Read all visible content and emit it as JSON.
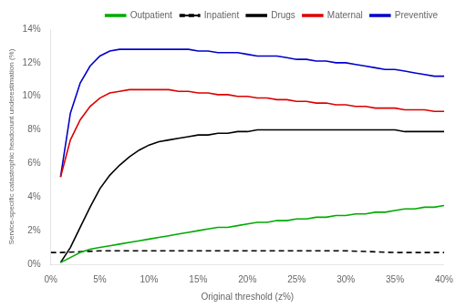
{
  "chart_data": {
    "type": "line",
    "title": "",
    "x_label": "Original threshold (z%)",
    "y_label": "Service-specific catastrophic headcount underestimation (%)",
    "xlim": [
      0,
      0.4
    ],
    "ylim": [
      0,
      0.14
    ],
    "xticks": [
      {
        "value": 0.0,
        "label": "0%"
      },
      {
        "value": 0.05,
        "label": "5%"
      },
      {
        "value": 0.1,
        "label": "10%"
      },
      {
        "value": 0.15,
        "label": "15%"
      },
      {
        "value": 0.2,
        "label": "20%"
      },
      {
        "value": 0.25,
        "label": "25%"
      },
      {
        "value": 0.3,
        "label": "30%"
      },
      {
        "value": 0.35,
        "label": "35%"
      },
      {
        "value": 0.4,
        "label": "40%"
      }
    ],
    "yticks": [
      {
        "value": 0.0,
        "label": "0%"
      },
      {
        "value": 0.02,
        "label": "2%"
      },
      {
        "value": 0.04,
        "label": "4%"
      },
      {
        "value": 0.06,
        "label": "6%"
      },
      {
        "value": 0.08,
        "label": "8%"
      },
      {
        "value": 0.1,
        "label": "10%"
      },
      {
        "value": 0.12,
        "label": "12%"
      },
      {
        "value": 0.14,
        "label": "14%"
      }
    ],
    "grid": false,
    "legend": "upper right",
    "series": [
      {
        "name": "Outpatient",
        "color": "#00aa00",
        "line_style": "solid",
        "x": [
          0.01,
          0.02,
          0.03,
          0.04,
          0.05,
          0.06,
          0.07,
          0.08,
          0.09,
          0.1,
          0.11,
          0.12,
          0.13,
          0.14,
          0.15,
          0.16,
          0.17,
          0.18,
          0.19,
          0.2,
          0.21,
          0.22,
          0.23,
          0.24,
          0.25,
          0.26,
          0.27,
          0.28,
          0.29,
          0.3,
          0.31,
          0.32,
          0.33,
          0.34,
          0.35,
          0.36,
          0.37,
          0.38,
          0.39,
          0.4
        ],
        "values": [
          0.001,
          0.004,
          0.007,
          0.009,
          0.01,
          0.011,
          0.012,
          0.013,
          0.014,
          0.015,
          0.016,
          0.017,
          0.018,
          0.019,
          0.02,
          0.021,
          0.022,
          0.022,
          0.023,
          0.024,
          0.025,
          0.025,
          0.026,
          0.026,
          0.027,
          0.027,
          0.028,
          0.028,
          0.029,
          0.029,
          0.03,
          0.03,
          0.031,
          0.031,
          0.032,
          0.033,
          0.033,
          0.034,
          0.034,
          0.035
        ]
      },
      {
        "name": "Inpatient",
        "color": "#000000",
        "line_style": "dashed",
        "x": [
          0.0,
          0.01,
          0.05,
          0.1,
          0.15,
          0.2,
          0.25,
          0.3,
          0.35,
          0.4
        ],
        "values": [
          0.007,
          0.007,
          0.008,
          0.008,
          0.008,
          0.008,
          0.008,
          0.008,
          0.007,
          0.007
        ]
      },
      {
        "name": "Drugs",
        "color": "#000000",
        "line_style": "solid",
        "x": [
          0.01,
          0.02,
          0.03,
          0.04,
          0.05,
          0.06,
          0.07,
          0.08,
          0.09,
          0.1,
          0.11,
          0.12,
          0.13,
          0.14,
          0.15,
          0.16,
          0.17,
          0.18,
          0.19,
          0.2,
          0.21,
          0.22,
          0.23,
          0.24,
          0.25,
          0.26,
          0.27,
          0.28,
          0.29,
          0.3,
          0.31,
          0.32,
          0.33,
          0.34,
          0.35,
          0.36,
          0.37,
          0.38,
          0.39,
          0.4
        ],
        "values": [
          0.001,
          0.01,
          0.022,
          0.034,
          0.045,
          0.053,
          0.059,
          0.064,
          0.068,
          0.071,
          0.073,
          0.074,
          0.075,
          0.076,
          0.077,
          0.077,
          0.078,
          0.078,
          0.079,
          0.079,
          0.08,
          0.08,
          0.08,
          0.08,
          0.08,
          0.08,
          0.08,
          0.08,
          0.08,
          0.08,
          0.08,
          0.08,
          0.08,
          0.08,
          0.08,
          0.079,
          0.079,
          0.079,
          0.079,
          0.079
        ]
      },
      {
        "name": "Maternal",
        "color": "#dd0000",
        "line_style": "solid",
        "x": [
          0.01,
          0.02,
          0.03,
          0.04,
          0.05,
          0.06,
          0.07,
          0.08,
          0.09,
          0.1,
          0.11,
          0.12,
          0.13,
          0.14,
          0.15,
          0.16,
          0.17,
          0.18,
          0.19,
          0.2,
          0.21,
          0.22,
          0.23,
          0.24,
          0.25,
          0.26,
          0.27,
          0.28,
          0.29,
          0.3,
          0.31,
          0.32,
          0.33,
          0.34,
          0.35,
          0.36,
          0.37,
          0.38,
          0.39,
          0.4
        ],
        "values": [
          0.052,
          0.074,
          0.086,
          0.094,
          0.099,
          0.102,
          0.103,
          0.104,
          0.104,
          0.104,
          0.104,
          0.104,
          0.103,
          0.103,
          0.102,
          0.102,
          0.101,
          0.101,
          0.1,
          0.1,
          0.099,
          0.099,
          0.098,
          0.098,
          0.097,
          0.097,
          0.096,
          0.096,
          0.095,
          0.095,
          0.094,
          0.094,
          0.093,
          0.093,
          0.093,
          0.092,
          0.092,
          0.092,
          0.091,
          0.091
        ]
      },
      {
        "name": "Preventive",
        "color": "#0000cc",
        "line_style": "solid",
        "x": [
          0.01,
          0.02,
          0.03,
          0.04,
          0.05,
          0.06,
          0.07,
          0.08,
          0.09,
          0.1,
          0.11,
          0.12,
          0.13,
          0.14,
          0.15,
          0.16,
          0.17,
          0.18,
          0.19,
          0.2,
          0.21,
          0.22,
          0.23,
          0.24,
          0.25,
          0.26,
          0.27,
          0.28,
          0.29,
          0.3,
          0.31,
          0.32,
          0.33,
          0.34,
          0.35,
          0.36,
          0.37,
          0.38,
          0.39,
          0.4
        ],
        "values": [
          0.052,
          0.09,
          0.108,
          0.118,
          0.124,
          0.127,
          0.128,
          0.128,
          0.128,
          0.128,
          0.128,
          0.128,
          0.128,
          0.128,
          0.127,
          0.127,
          0.126,
          0.126,
          0.126,
          0.125,
          0.124,
          0.124,
          0.124,
          0.123,
          0.122,
          0.122,
          0.121,
          0.121,
          0.12,
          0.12,
          0.119,
          0.118,
          0.117,
          0.116,
          0.116,
          0.115,
          0.114,
          0.113,
          0.112,
          0.112
        ]
      }
    ]
  }
}
